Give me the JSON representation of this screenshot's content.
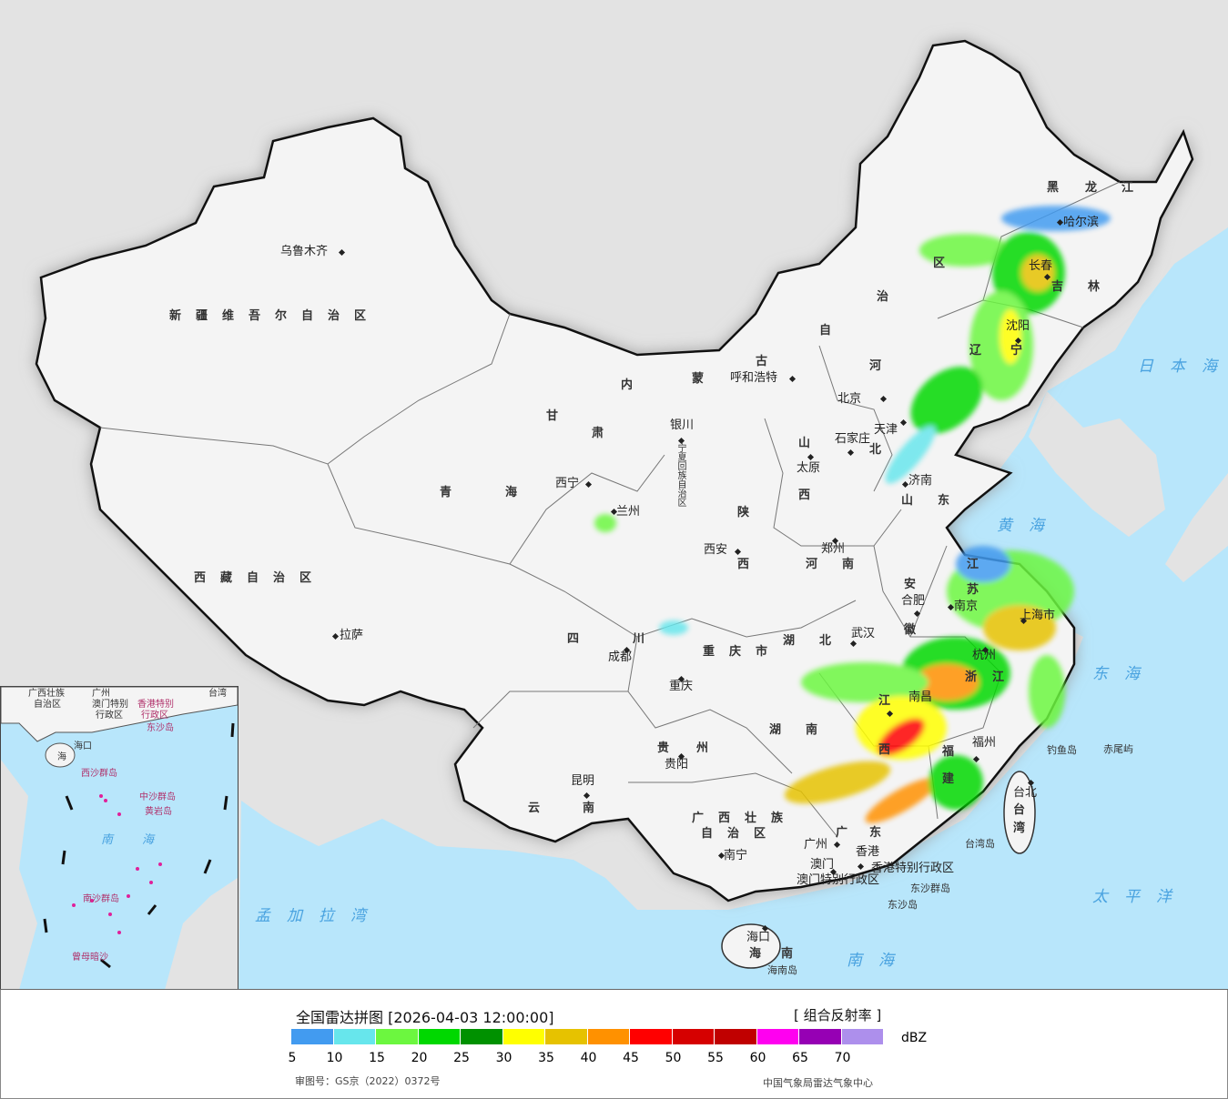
{
  "legend": {
    "title": "全国雷达拼图 [2026-04-03 12:00:00]",
    "product": "[ 组合反射率 ]",
    "unit": "dBZ",
    "ticks": [
      "5",
      "10",
      "15",
      "20",
      "25",
      "30",
      "35",
      "40",
      "45",
      "50",
      "55",
      "60",
      "65",
      "70"
    ],
    "colors": [
      "#429bf0",
      "#67e6ec",
      "#6cf73f",
      "#00d800",
      "#009100",
      "#ffff00",
      "#e6c200",
      "#ff9100",
      "#ff0000",
      "#d60000",
      "#c00000",
      "#ff00f0",
      "#9600b4",
      "#ad8fec"
    ],
    "approval": "审图号：GS京（2022）0372号",
    "agency": "中国气象局雷达气象中心"
  },
  "map": {
    "colors": {
      "land": "#f4f4f4",
      "sea": "#b8e6fb",
      "outside": "#e3e3e3"
    },
    "labels": [
      "新疆维吾尔自治区",
      "乌鲁木齐",
      "西藏自治区",
      "拉萨",
      "青",
      "海",
      "西宁",
      "甘",
      "肃",
      "兰州",
      "内",
      "蒙",
      "古",
      "自",
      "治",
      "区",
      "呼和浩特",
      "银川",
      "宁夏回族自治区",
      "黑",
      "龙",
      "江",
      "哈尔滨",
      "吉",
      "林",
      "长春",
      "辽",
      "宁",
      "沈阳",
      "北京",
      "天津",
      "河",
      "北",
      "石家庄",
      "山",
      "西",
      "太原",
      "济南",
      "山",
      "东",
      "陕",
      "西",
      "西安",
      "郑州",
      "河",
      "南",
      "安",
      "徽",
      "合肥",
      "江",
      "苏",
      "南京",
      "上海市",
      "杭州",
      "浙",
      "江",
      "湖",
      "北",
      "武汉",
      "四",
      "川",
      "成都",
      "重庆市",
      "重庆",
      "贵",
      "州",
      "贵阳",
      "湖",
      "南",
      "江",
      "西",
      "南昌",
      "福",
      "建",
      "福州",
      "云",
      "南",
      "昆明",
      "广西壮族",
      "自治区",
      "南宁",
      "广",
      "东",
      "广州",
      "澳门",
      "香港",
      "香港特别行政区",
      "澳门特别行政区",
      "东沙群岛",
      "东沙岛",
      "海口",
      "海",
      "南",
      "海南岛",
      "台北",
      "台",
      "湾",
      "台湾岛",
      "钓鱼岛",
      "赤尾屿",
      "日本海",
      "黄海",
      "东海",
      "太平洋",
      "南海",
      "孟加拉湾"
    ],
    "inset_labels": [
      "广西壮族",
      "自治区",
      "广州",
      "澳门特别",
      "行政区",
      "香港特别",
      "行政区",
      "台湾",
      "海口",
      "海",
      "西沙群岛",
      "中沙群岛",
      "黄岩岛",
      "南",
      "海",
      "南沙群岛",
      "曾母暗沙",
      "东沙岛"
    ]
  }
}
